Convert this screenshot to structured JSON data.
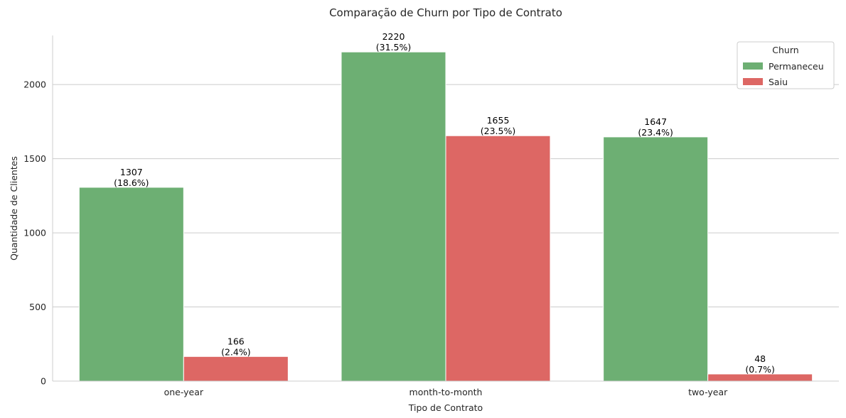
{
  "chart_data": {
    "type": "bar",
    "title": "Comparação de Churn por Tipo de Contrato",
    "xlabel": "Tipo de Contrato",
    "ylabel": "Quantidade de Clientes",
    "categories": [
      "one-year",
      "month-to-month",
      "two-year"
    ],
    "series": [
      {
        "name": "Permaneceu",
        "color": "#6daf73",
        "values": [
          1307,
          2220,
          1647
        ],
        "labels": [
          "(18.6%)",
          "(31.5%)",
          "(23.4%)"
        ]
      },
      {
        "name": "Saiu",
        "color": "#dd6764",
        "values": [
          166,
          1655,
          48
        ],
        "labels": [
          "(2.4%)",
          "(23.5%)",
          "(0.7%)"
        ]
      }
    ],
    "ylim": [
      0,
      2331
    ],
    "yticks": [
      0,
      500,
      1000,
      1500,
      2000
    ],
    "grid": true,
    "legend": {
      "title": "Churn",
      "position": "top-right"
    }
  }
}
